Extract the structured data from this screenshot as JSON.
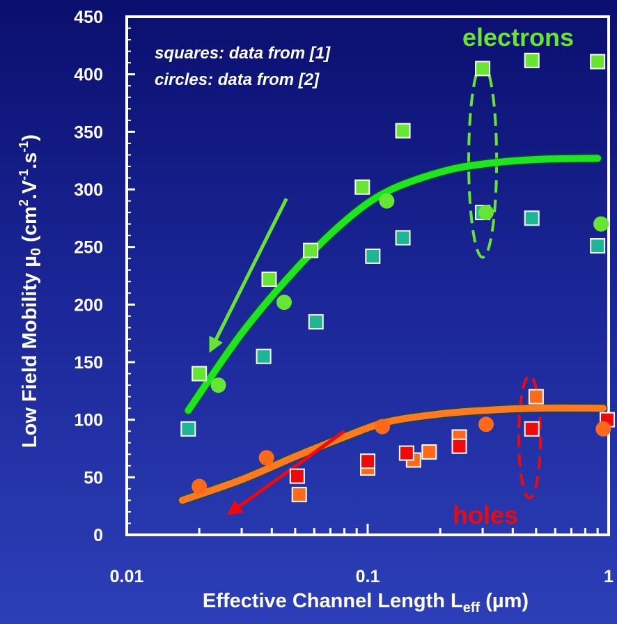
{
  "chart_data": {
    "type": "scatter",
    "x_scale": "log",
    "xlim": [
      0.01,
      1
    ],
    "ylim": [
      0,
      450
    ],
    "x_ticks": [
      "0.01",
      "0.1",
      "1"
    ],
    "y_ticks": [
      "0",
      "50",
      "100",
      "150",
      "200",
      "250",
      "300",
      "350",
      "400",
      "450"
    ],
    "xlabel": {
      "main": "Effective Channel Length L",
      "sub": "eff",
      "rest": " (µm)"
    },
    "ylabel": {
      "main": "Low Field Mobility µ",
      "sub": "0",
      "p1": " (cm",
      "sup1": "2",
      "p2": ".V",
      "sup2": "-1",
      "p3": ".s",
      "sup3": "-1",
      "p4": ")"
    },
    "annotations": {
      "squares": "squares: data from [1]",
      "circles": "circles: data from [2]"
    },
    "group_labels": {
      "electrons": "electrons",
      "holes": "holes"
    },
    "colors": {
      "electron_light": "#66e632",
      "electron_teal": "#1eb496",
      "electron_curve": "#1ee61e",
      "hole_orange": "#ff6a1a",
      "hole_red": "#ee0a0a",
      "hole_curve": "#ff7a1e"
    },
    "series": [
      {
        "kind": "square",
        "color": "electron_light",
        "points": [
          [
            0.02,
            140
          ],
          [
            0.039,
            222
          ],
          [
            0.058,
            247
          ],
          [
            0.095,
            302
          ],
          [
            0.14,
            351
          ],
          [
            0.3,
            405
          ],
          [
            0.48,
            412
          ],
          [
            0.9,
            411
          ]
        ]
      },
      {
        "kind": "square",
        "color": "electron_teal",
        "points": [
          [
            0.018,
            92
          ],
          [
            0.037,
            155
          ],
          [
            0.061,
            185
          ],
          [
            0.105,
            242
          ],
          [
            0.14,
            258
          ],
          [
            0.3,
            280
          ],
          [
            0.48,
            275
          ],
          [
            0.9,
            251
          ]
        ]
      },
      {
        "kind": "circle",
        "color": "electron_light",
        "points": [
          [
            0.024,
            130
          ],
          [
            0.045,
            202
          ],
          [
            0.12,
            290
          ],
          [
            0.31,
            280
          ],
          [
            0.93,
            270
          ]
        ]
      },
      {
        "kind": "square",
        "color": "hole_orange",
        "points": [
          [
            0.052,
            35
          ],
          [
            0.1,
            58
          ],
          [
            0.155,
            65
          ],
          [
            0.18,
            72
          ],
          [
            0.24,
            85
          ],
          [
            0.5,
            120
          ]
        ]
      },
      {
        "kind": "square",
        "color": "hole_red",
        "points": [
          [
            0.051,
            51
          ],
          [
            0.1,
            64
          ],
          [
            0.145,
            71
          ],
          [
            0.24,
            77
          ],
          [
            0.48,
            92
          ],
          [
            1.0,
            100
          ]
        ]
      },
      {
        "kind": "circle",
        "color": "hole_orange",
        "points": [
          [
            0.02,
            42
          ],
          [
            0.038,
            67
          ],
          [
            0.115,
            94
          ],
          [
            0.31,
            96
          ],
          [
            0.95,
            92
          ]
        ]
      }
    ],
    "fit_curves": [
      {
        "color": "electron_curve",
        "points": [
          [
            0.018,
            108
          ],
          [
            0.03,
            175
          ],
          [
            0.05,
            230
          ],
          [
            0.08,
            272
          ],
          [
            0.12,
            298
          ],
          [
            0.2,
            315
          ],
          [
            0.3,
            322
          ],
          [
            0.5,
            326
          ],
          [
            0.9,
            327
          ]
        ]
      },
      {
        "color": "hole_curve",
        "points": [
          [
            0.017,
            30
          ],
          [
            0.03,
            48
          ],
          [
            0.05,
            68
          ],
          [
            0.08,
            85
          ],
          [
            0.12,
            98
          ],
          [
            0.2,
            105
          ],
          [
            0.3,
            108
          ],
          [
            0.5,
            110
          ],
          [
            0.95,
            110
          ]
        ]
      }
    ],
    "arrows": [
      {
        "color": "electron_light",
        "from": [
          0.046,
          292
        ],
        "to": [
          0.022,
          158
        ]
      },
      {
        "color": "hole_red",
        "from": [
          0.08,
          90
        ],
        "to": [
          0.026,
          17
        ]
      }
    ],
    "ellipses": [
      {
        "color": "electron_light",
        "center": [
          0.3,
          325
        ],
        "rx_decades": 0.058,
        "ry": 84
      },
      {
        "color": "hole_red",
        "center": [
          0.47,
          85
        ],
        "rx_decades": 0.045,
        "ry": 53
      }
    ]
  }
}
